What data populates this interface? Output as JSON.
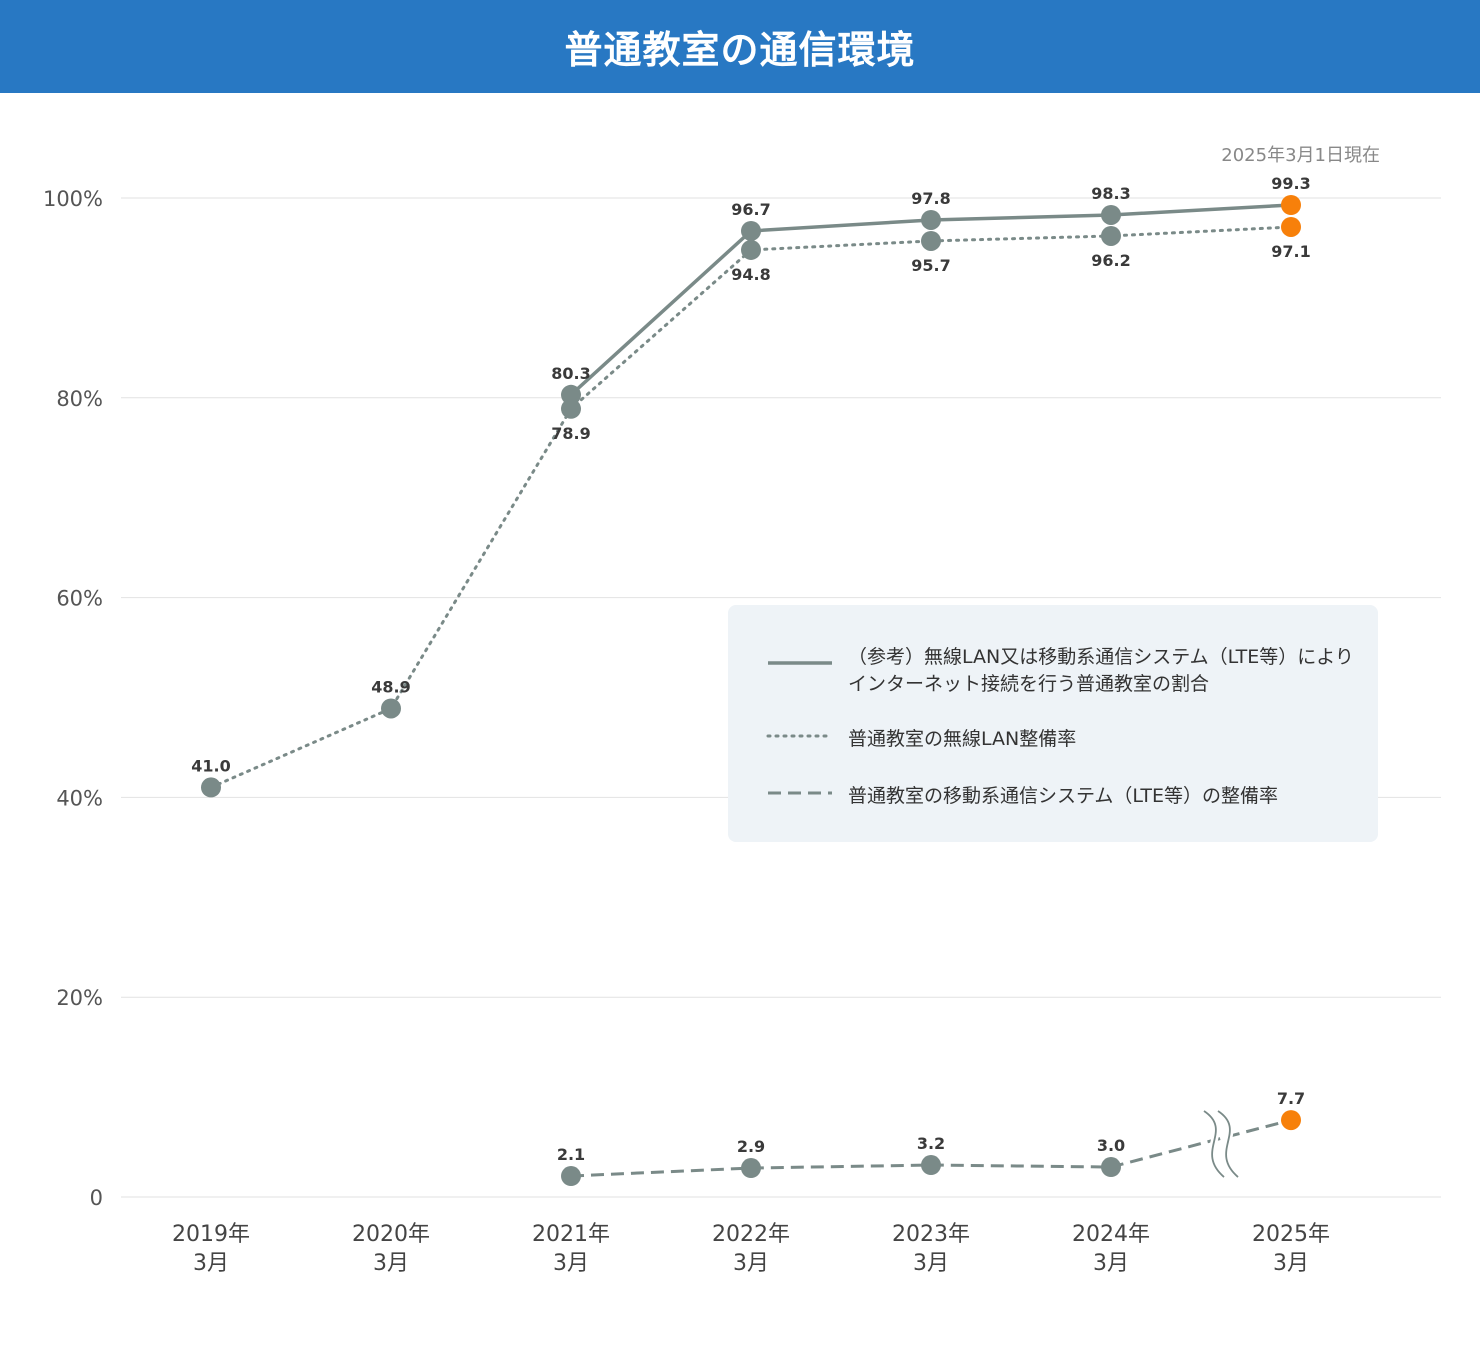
{
  "header": {
    "title": "普通教室の通信環境"
  },
  "chart_data": {
    "type": "line",
    "note": "2025年3月1日現在",
    "categories": [
      {
        "year": "2019年",
        "month": "3月"
      },
      {
        "year": "2020年",
        "month": "3月"
      },
      {
        "year": "2021年",
        "month": "3月"
      },
      {
        "year": "2022年",
        "month": "3月"
      },
      {
        "year": "2023年",
        "month": "3月"
      },
      {
        "year": "2024年",
        "month": "3月"
      },
      {
        "year": "2025年",
        "month": "3月"
      }
    ],
    "yticks": [
      {
        "value": 0,
        "label": "0"
      },
      {
        "value": 20,
        "label": "20%"
      },
      {
        "value": 40,
        "label": "40%"
      },
      {
        "value": 60,
        "label": "60%"
      },
      {
        "value": 80,
        "label": "80%"
      },
      {
        "value": 100,
        "label": "100%"
      }
    ],
    "axis_break": "between 2024年3月 and 2025年3月 on the lower series",
    "ylim": [
      0,
      100
    ],
    "grid": true,
    "legend_position": "center-right",
    "colors": {
      "line": "#7a8a88",
      "highlight": "#f7800a",
      "grid": "#e2e2e2",
      "legend_bg": "#eef3f7"
    },
    "series": [
      {
        "name": "（参考）無線LAN又は移動系通信システム（LTE等）によりインターネット接続を行う普通教室の割合",
        "legend_lines": [
          "（参考）無線LAN又は移動系通信システム（LTE等）により",
          "インターネット接続を行う普通教室の割合"
        ],
        "style": "solid",
        "values": [
          null,
          null,
          80.3,
          96.7,
          97.8,
          98.3,
          99.3
        ],
        "labels": [
          "",
          "",
          "80.3",
          "96.7",
          "97.8",
          "98.3",
          "99.3"
        ],
        "label_pos": "above"
      },
      {
        "name": "普通教室の無線LAN整備率",
        "legend_lines": [
          "普通教室の無線LAN整備率"
        ],
        "style": "dotted",
        "values": [
          41.0,
          48.9,
          78.9,
          94.8,
          95.7,
          96.2,
          97.1
        ],
        "labels": [
          "41.0",
          "48.9",
          "78.9",
          "94.8",
          "95.7",
          "96.2",
          "97.1"
        ],
        "label_pos": "mixed"
      },
      {
        "name": "普通教室の移動系通信システム（LTE等）の整備率",
        "legend_lines": [
          "普通教室の移動系通信システム（LTE等）の整備率"
        ],
        "style": "dashed",
        "values": [
          null,
          null,
          2.1,
          2.9,
          3.2,
          3.0,
          7.7
        ],
        "labels": [
          "",
          "",
          "2.1",
          "2.9",
          "3.2",
          "3.0",
          "7.7"
        ],
        "label_pos": "above"
      }
    ]
  }
}
